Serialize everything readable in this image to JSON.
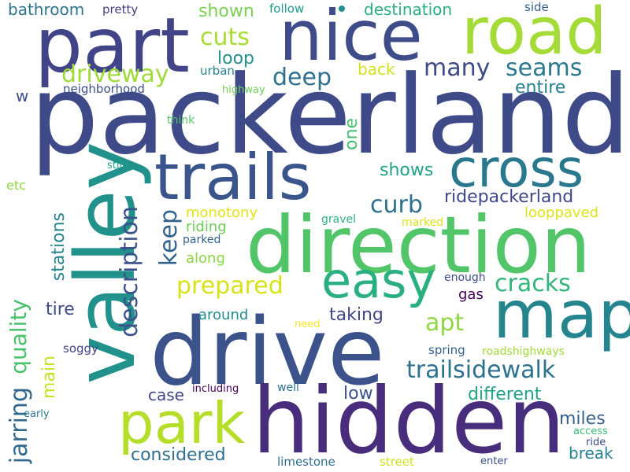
{
  "word_cloud": {
    "words": [
      {
        "text": "packerland",
        "color": "#3f4b89"
      },
      {
        "text": "valley",
        "color": "#21918c"
      },
      {
        "text": "drive",
        "color": "#3b528b"
      },
      {
        "text": "hidden",
        "color": "#472d7b"
      },
      {
        "text": "direction",
        "color": "#52c569"
      },
      {
        "text": "map",
        "color": "#24858e"
      },
      {
        "text": "nice",
        "color": "#3e4c8a"
      },
      {
        "text": "road",
        "color": "#a5db36"
      },
      {
        "text": "part",
        "color": "#414487"
      },
      {
        "text": "trails",
        "color": "#3a548c"
      },
      {
        "text": "cross",
        "color": "#2a788e"
      },
      {
        "text": "park",
        "color": "#b5de2b"
      },
      {
        "text": "easy",
        "color": "#2ab07f"
      },
      {
        "text": "description",
        "color": "#3b528b"
      },
      {
        "text": "jarring",
        "color": "#31688e"
      },
      {
        "text": "quality",
        "color": "#4ac16d"
      },
      {
        "text": "prepared",
        "color": "#d8e219"
      },
      {
        "text": "trailsidewalk",
        "color": "#2c728e"
      },
      {
        "text": "driveway",
        "color": "#a0da39"
      },
      {
        "text": "cuts",
        "color": "#a8db34"
      },
      {
        "text": "seams",
        "color": "#2a788e"
      },
      {
        "text": "many",
        "color": "#3e4a89"
      },
      {
        "text": "deep",
        "color": "#2c718e"
      },
      {
        "text": "cracks",
        "color": "#31b57b"
      },
      {
        "text": "apt",
        "color": "#90d743"
      },
      {
        "text": "curb",
        "color": "#2d708e"
      },
      {
        "text": "keep",
        "color": "#33638d"
      },
      {
        "text": "ridepackerland",
        "color": "#3f4788"
      },
      {
        "text": "different",
        "color": "#20a386"
      },
      {
        "text": "considered",
        "color": "#2e6e8e"
      },
      {
        "text": "stations",
        "color": "#25848e"
      },
      {
        "text": "one",
        "color": "#44bf70"
      },
      {
        "text": "main",
        "color": "#c8e020"
      },
      {
        "text": "shown",
        "color": "#7ad151"
      },
      {
        "text": "loop",
        "color": "#21908d"
      },
      {
        "text": "entire",
        "color": "#27808e"
      },
      {
        "text": "shows",
        "color": "#20a386"
      },
      {
        "text": "taking",
        "color": "#404688"
      },
      {
        "text": "miles",
        "color": "#355f8d"
      },
      {
        "text": "break",
        "color": "#26828e"
      },
      {
        "text": "tire",
        "color": "#3e4c8a"
      },
      {
        "text": "low",
        "color": "#3b518b"
      },
      {
        "text": "case",
        "color": "#414487"
      },
      {
        "text": "bathroom",
        "color": "#2c738e"
      },
      {
        "text": "destination",
        "color": "#29af7f"
      },
      {
        "text": "back",
        "color": "#d2e21b"
      },
      {
        "text": "monotony",
        "color": "#e5e419"
      },
      {
        "text": "riding",
        "color": "#6ccd5a"
      },
      {
        "text": "along",
        "color": "#8ed645"
      },
      {
        "text": "looppaved",
        "color": "#dde318"
      },
      {
        "text": "around",
        "color": "#228c8d"
      },
      {
        "text": "gas",
        "color": "#440154"
      },
      {
        "text": "etc",
        "color": "#90d743"
      },
      {
        "text": "w",
        "color": "#3e4a89"
      },
      {
        "text": "pretty",
        "color": "#433e85"
      },
      {
        "text": "follow",
        "color": "#1f9a8a"
      },
      {
        "text": "side",
        "color": "#35608d"
      },
      {
        "text": "neighborhood",
        "color": "#3d4e8a"
      },
      {
        "text": "urban",
        "color": "#27808e"
      },
      {
        "text": "highway",
        "color": "#70cf57"
      },
      {
        "text": "think",
        "color": "#52c569"
      },
      {
        "text": "stilli",
        "color": "#1fa187"
      },
      {
        "text": "gravel",
        "color": "#2db27d"
      },
      {
        "text": "marked",
        "color": "#dde318"
      },
      {
        "text": "parked",
        "color": "#34618d"
      },
      {
        "text": "enough",
        "color": "#3e4c8a"
      },
      {
        "text": "need",
        "color": "#fde725"
      },
      {
        "text": "spring",
        "color": "#35608d"
      },
      {
        "text": "roadshighways",
        "color": "#a2da37"
      },
      {
        "text": "soggy",
        "color": "#414487"
      },
      {
        "text": "including",
        "color": "#440154"
      },
      {
        "text": "well",
        "color": "#2d708e"
      },
      {
        "text": "early",
        "color": "#2a778e"
      },
      {
        "text": "access",
        "color": "#3dbc74"
      },
      {
        "text": "ride",
        "color": "#3e4989"
      },
      {
        "text": "limestone",
        "color": "#2e6d8e"
      },
      {
        "text": "street",
        "color": "#d0e11c"
      },
      {
        "text": "enter",
        "color": "#3a538b"
      }
    ],
    "dot_color": "#21918c"
  }
}
